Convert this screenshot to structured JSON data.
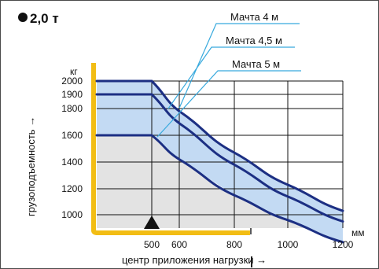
{
  "chart_data": {
    "type": "area",
    "title": "●2,0 т",
    "xlabel": "центр приложения нагрузки →",
    "ylabel": "грузоподъемность →",
    "x_unit": "мм",
    "y_unit": "кг",
    "xlim": [
      400,
      1200
    ],
    "ylim": [
      900,
      2000
    ],
    "x_ticks": [
      500,
      600,
      800,
      1000,
      1200
    ],
    "y_ticks": [
      1000,
      1200,
      1400,
      1600,
      1800,
      1900,
      2000
    ],
    "grid": true,
    "series": [
      {
        "name": "Мачта 4 м",
        "x": [
          400,
          500,
          600,
          800,
          1000,
          1200
        ],
        "y": [
          2000,
          2000,
          1780,
          1470,
          1230,
          1030
        ]
      },
      {
        "name": "Мачта 4,5 м",
        "x": [
          400,
          500,
          600,
          800,
          1000,
          1200
        ],
        "y": [
          1900,
          1900,
          1690,
          1380,
          1140,
          950
        ]
      },
      {
        "name": "Мачта 5 м",
        "x": [
          400,
          500,
          600,
          800,
          1000,
          1200
        ],
        "y": [
          1600,
          1600,
          1420,
          1150,
          960,
          795
        ]
      }
    ],
    "colors": {
      "line": "#1c2f83",
      "band_fill": "#c3daf3",
      "base_fill": "#e3e3e3",
      "axis": "#f2bd14",
      "grid": "#111111",
      "leader": "#37a9dd"
    }
  }
}
